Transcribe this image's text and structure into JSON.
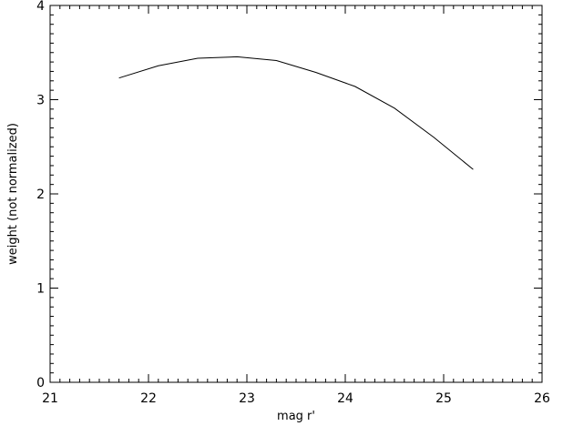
{
  "chart_data": {
    "type": "line",
    "title": "",
    "xlabel": "mag r'",
    "ylabel": "weight (not normalized)",
    "xlim": [
      21,
      26
    ],
    "ylim": [
      0,
      4
    ],
    "x_ticks": [
      21,
      22,
      23,
      24,
      25,
      26
    ],
    "y_ticks": [
      0,
      1,
      2,
      3,
      4
    ],
    "x_tick_labels": [
      "21",
      "22",
      "23",
      "24",
      "25",
      "26"
    ],
    "y_tick_labels": [
      "0",
      "1",
      "2",
      "3",
      "4"
    ],
    "x_minor_step": 0.1,
    "y_minor_step": 0.1,
    "grid": false,
    "line_color": "#000000",
    "series": [
      {
        "x": [
          21.7,
          22.1,
          22.5,
          22.9,
          23.3,
          23.7,
          24.1,
          24.5,
          24.9,
          25.3
        ],
        "y": [
          3.23,
          3.36,
          3.44,
          3.455,
          3.415,
          3.29,
          3.14,
          2.91,
          2.6,
          2.26
        ]
      }
    ]
  }
}
